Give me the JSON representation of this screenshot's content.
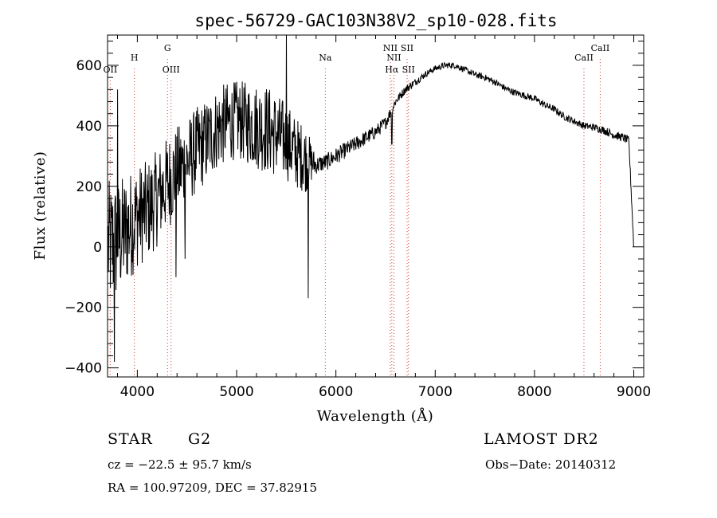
{
  "chart_data": {
    "type": "line",
    "title": "spec-56729-GAC103N38V2_sp10-028.fits",
    "xlabel": "Wavelength (Å)",
    "ylabel": "Flux (relative)",
    "xlim": [
      3700,
      9100
    ],
    "ylim": [
      -430,
      700
    ],
    "xticks": [
      4000,
      5000,
      6000,
      7000,
      8000,
      9000
    ],
    "xtick_labels": [
      "4000",
      "5000",
      "6000",
      "7000",
      "8000",
      "9000"
    ],
    "yticks": [
      -400,
      -200,
      0,
      200,
      400,
      600
    ],
    "ytick_labels": [
      "−400",
      "−200",
      "0",
      "200",
      "400",
      "600"
    ],
    "grid": false,
    "line_color": "#000000",
    "marker_color": "#cc3333",
    "continuum": [
      [
        3700,
        0
      ],
      [
        3800,
        20
      ],
      [
        3900,
        60
      ],
      [
        4000,
        100
      ],
      [
        4100,
        120
      ],
      [
        4200,
        160
      ],
      [
        4300,
        210
      ],
      [
        4400,
        250
      ],
      [
        4500,
        280
      ],
      [
        4600,
        320
      ],
      [
        4700,
        350
      ],
      [
        4800,
        390
      ],
      [
        4900,
        410
      ],
      [
        5000,
        420
      ],
      [
        5100,
        410
      ],
      [
        5200,
        400
      ],
      [
        5300,
        390
      ],
      [
        5400,
        370
      ],
      [
        5500,
        350
      ],
      [
        5600,
        310
      ],
      [
        5700,
        290
      ],
      [
        5800,
        270
      ],
      [
        5900,
        280
      ],
      [
        6000,
        300
      ],
      [
        6100,
        320
      ],
      [
        6200,
        340
      ],
      [
        6300,
        360
      ],
      [
        6400,
        380
      ],
      [
        6500,
        410
      ],
      [
        6600,
        480
      ],
      [
        6700,
        520
      ],
      [
        6800,
        545
      ],
      [
        6900,
        570
      ],
      [
        7000,
        590
      ],
      [
        7100,
        600
      ],
      [
        7200,
        600
      ],
      [
        7300,
        585
      ],
      [
        7400,
        570
      ],
      [
        7500,
        560
      ],
      [
        7600,
        545
      ],
      [
        7700,
        525
      ],
      [
        7800,
        510
      ],
      [
        7900,
        500
      ],
      [
        8000,
        490
      ],
      [
        8100,
        470
      ],
      [
        8200,
        455
      ],
      [
        8300,
        430
      ],
      [
        8400,
        415
      ],
      [
        8500,
        400
      ],
      [
        8600,
        395
      ],
      [
        8700,
        385
      ],
      [
        8800,
        370
      ],
      [
        8900,
        360
      ],
      [
        8950,
        350
      ],
      [
        9000,
        0
      ]
    ],
    "noise": [
      [
        3700,
        220
      ],
      [
        4000,
        170
      ],
      [
        4400,
        150
      ],
      [
        5000,
        130
      ],
      [
        5300,
        150
      ],
      [
        5700,
        110
      ],
      [
        5800,
        30
      ],
      [
        6500,
        22
      ],
      [
        6600,
        15
      ],
      [
        7000,
        10
      ],
      [
        8500,
        12
      ],
      [
        9000,
        15
      ]
    ],
    "features": [
      {
        "x": 5500,
        "y": 700
      },
      {
        "x": 5720,
        "y": -170
      },
      {
        "x": 3800,
        "y": 520
      },
      {
        "x": 3770,
        "y": -380
      },
      {
        "x": 4480,
        "y": -40
      },
      {
        "x": 4390,
        "y": -100
      },
      {
        "x": 6563,
        "y": 340
      }
    ],
    "spectral_lines": [
      {
        "label": "OII",
        "x": 3727,
        "y_label": 576
      },
      {
        "label": "H",
        "x": 3970,
        "y_label": 616
      },
      {
        "label": "G",
        "x": 4304,
        "y_label": 647
      },
      {
        "label": "OIII",
        "x": 4340,
        "y_label": 576
      },
      {
        "label": "Na",
        "x": 5893,
        "y_label": 616
      },
      {
        "label": "NII",
        "x": 6548,
        "y_label": 647
      },
      {
        "label": "NII",
        "x": 6584,
        "y_label": 616
      },
      {
        "label": "Hα",
        "x": 6563,
        "y_label": 576
      },
      {
        "label": "SII",
        "x": 6717,
        "y_label": 647
      },
      {
        "label": "SII",
        "x": 6731,
        "y_label": 576
      },
      {
        "label": "CaII",
        "x": 8498,
        "y_label": 616
      },
      {
        "label": "CaII",
        "x": 8662,
        "y_label": 647
      }
    ]
  },
  "info": {
    "class": "STAR",
    "subclass": "G2",
    "survey": "LAMOST DR2",
    "cz": "cz = −22.5 ± 95.7 km/s",
    "obsdate": "Obs−Date: 20140312",
    "radec": "RA = 100.97209, DEC =  37.82915"
  }
}
